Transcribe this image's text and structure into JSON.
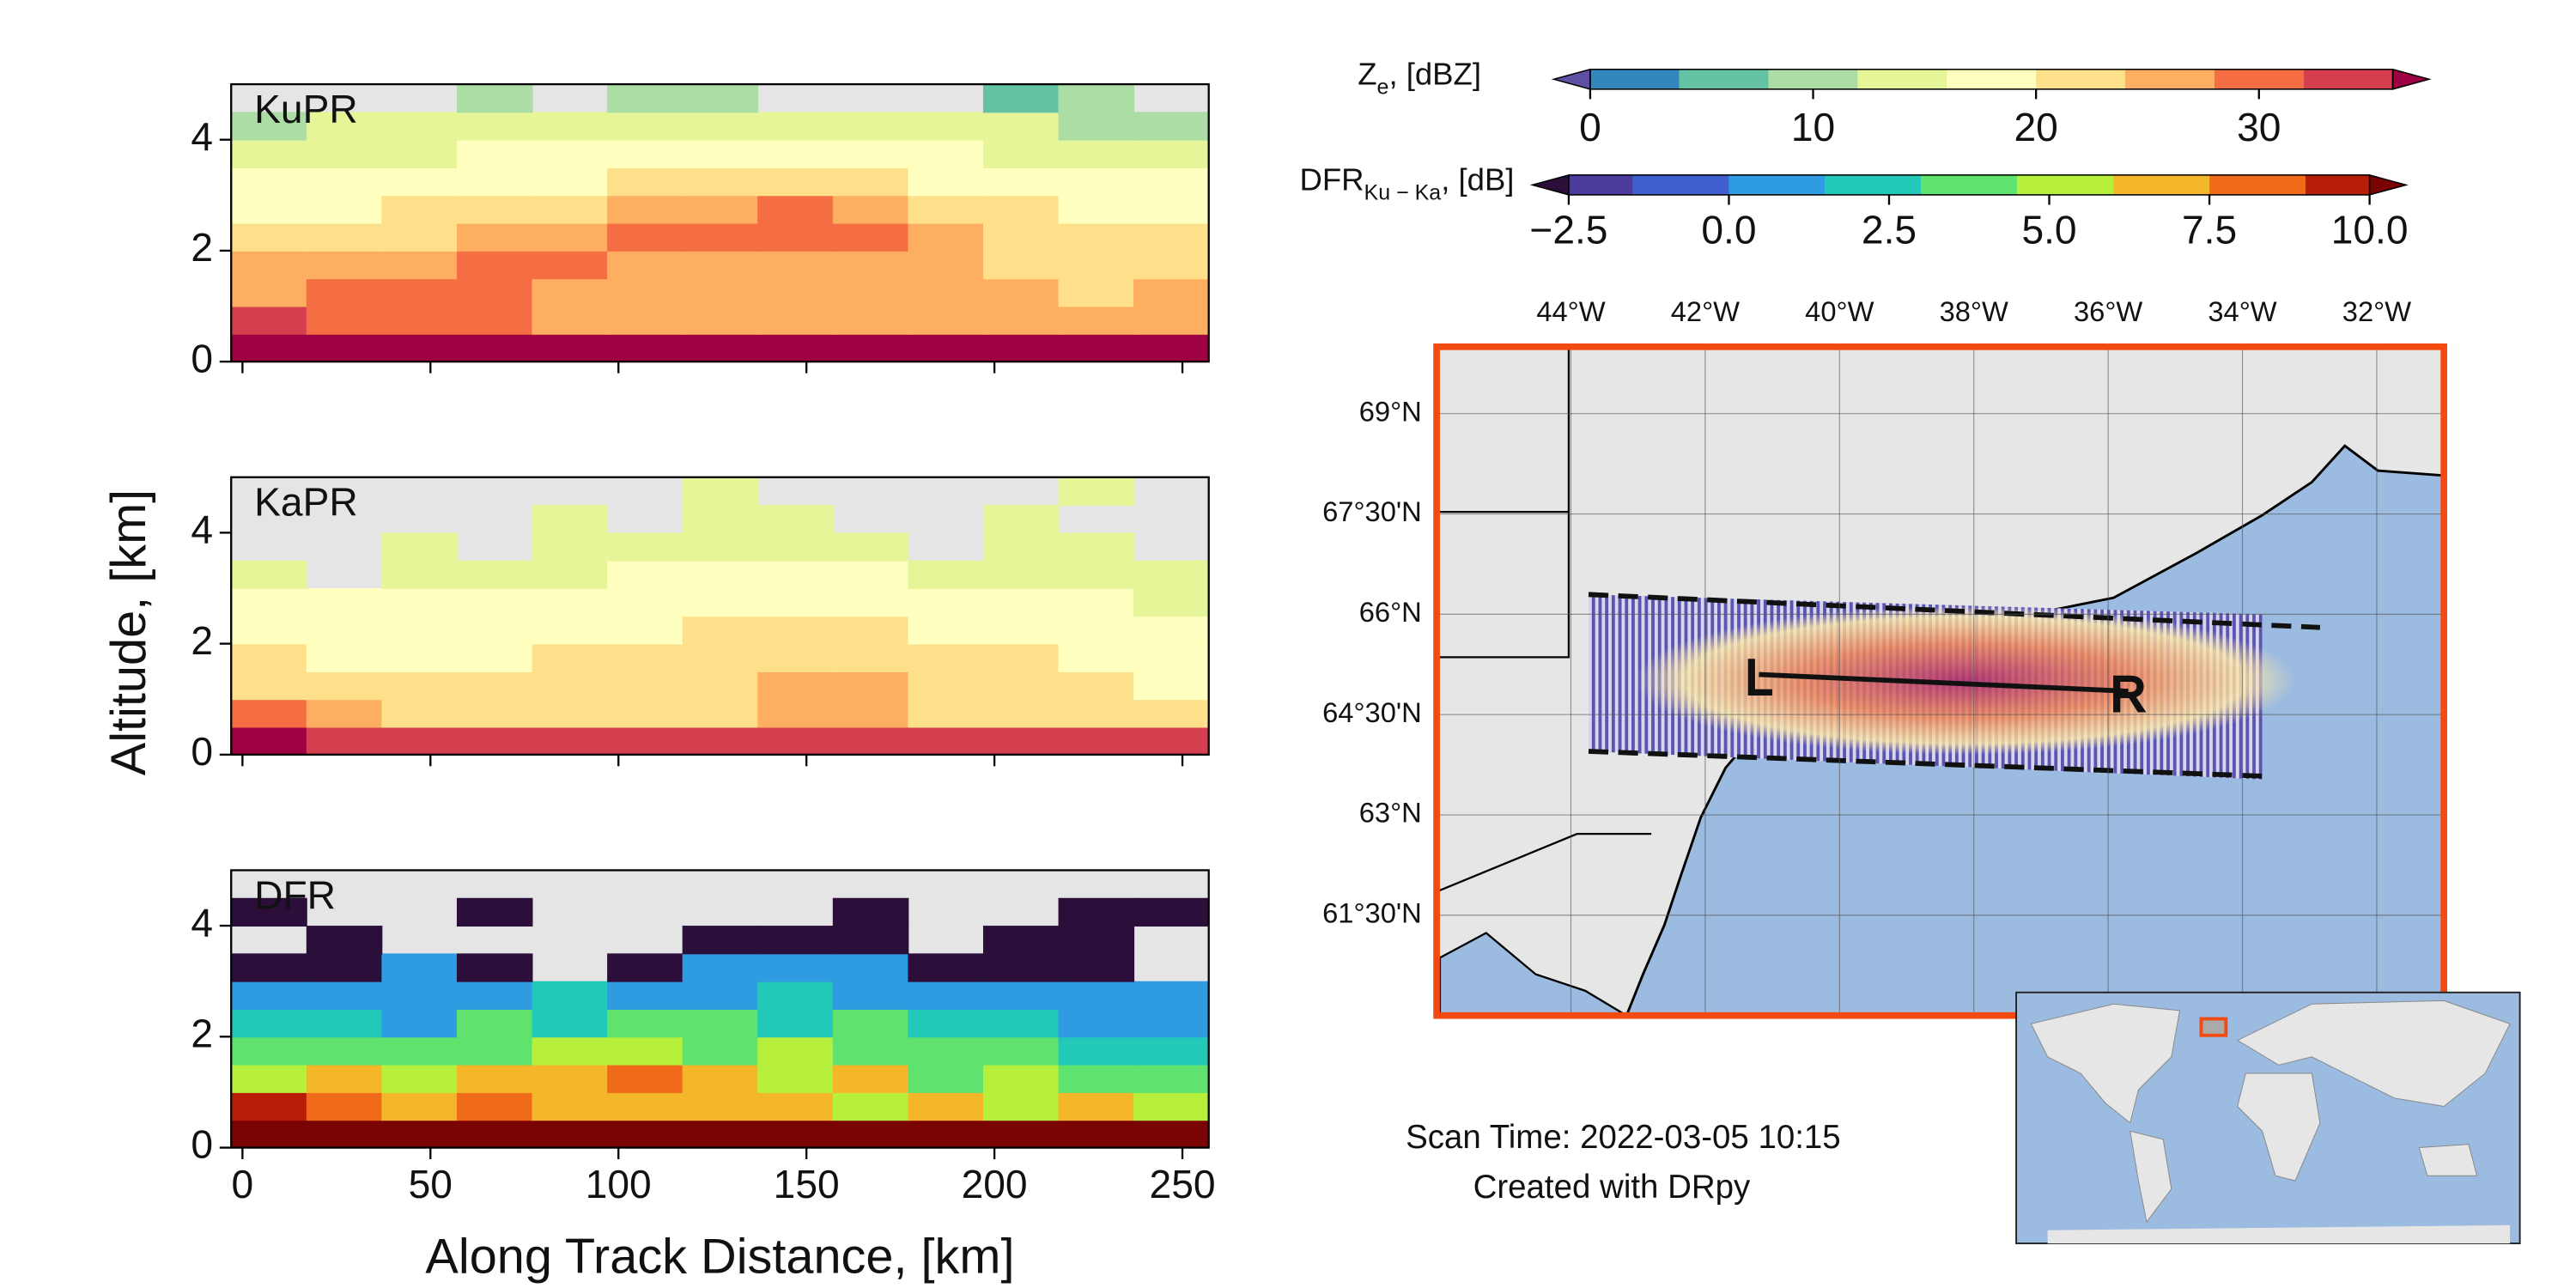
{
  "chart_data": [
    {
      "type": "heatmap",
      "title": "KuPR",
      "xlim": [
        -3,
        257
      ],
      "ylim": [
        0,
        5
      ],
      "yticks": [
        0,
        2,
        4
      ],
      "x_edges": [
        -3,
        17,
        37,
        57,
        77,
        97,
        117,
        137,
        157,
        177,
        197,
        217,
        237,
        257
      ],
      "y_edges": [
        0,
        0.5,
        1,
        1.5,
        2,
        2.5,
        3,
        3.5,
        4,
        4.5,
        5
      ],
      "z": [
        [
          37,
          37,
          37,
          37,
          37,
          37,
          37,
          37,
          37,
          37,
          37,
          37,
          37
        ],
        [
          33,
          30,
          28,
          28,
          27,
          27,
          27,
          26,
          27,
          27,
          26,
          25,
          26
        ],
        [
          27,
          28,
          28,
          29,
          27,
          26,
          26,
          25,
          26,
          25,
          24,
          23,
          24
        ],
        [
          24,
          24,
          26,
          28,
          29,
          27,
          26,
          27,
          27,
          25,
          23,
          22,
          22
        ],
        [
          21,
          22,
          23,
          24,
          26,
          29,
          28,
          28,
          28,
          24,
          22,
          21,
          20
        ],
        [
          19,
          19,
          20,
          21,
          22,
          24,
          26,
          28,
          27,
          22,
          20,
          19,
          18
        ],
        [
          17,
          17,
          18,
          18,
          19,
          20,
          21,
          22,
          21,
          19,
          18,
          17,
          16
        ],
        [
          14,
          15,
          15,
          16,
          16,
          17,
          18,
          18,
          17,
          16,
          15,
          14,
          14
        ],
        [
          11,
          12,
          12,
          13,
          13,
          13,
          14,
          14,
          13,
          12,
          12,
          10,
          11
        ],
        [
          null,
          null,
          null,
          10,
          null,
          8,
          9,
          null,
          null,
          null,
          7,
          8,
          null
        ]
      ]
    },
    {
      "type": "heatmap",
      "title": "KaPR",
      "ylabel": "Altitude, [km]",
      "xlim": [
        -3,
        257
      ],
      "ylim": [
        0,
        5
      ],
      "yticks": [
        0,
        2,
        4
      ],
      "x_edges": [
        -3,
        17,
        37,
        57,
        77,
        97,
        117,
        137,
        157,
        177,
        197,
        217,
        237,
        257
      ],
      "y_edges": [
        0,
        0.5,
        1,
        1.5,
        2,
        2.5,
        3,
        3.5,
        4,
        4.5,
        5
      ],
      "z": [
        [
          37,
          34,
          33,
          33,
          33,
          33,
          33,
          33,
          33,
          33,
          33,
          33,
          33
        ],
        [
          30,
          26,
          22,
          21,
          21,
          22,
          23,
          24,
          24,
          23,
          22,
          21,
          20
        ],
        [
          22,
          21,
          20,
          20,
          21,
          22,
          23,
          24,
          24,
          22,
          21,
          20,
          19
        ],
        [
          20,
          19,
          19,
          19,
          20,
          21,
          22,
          23,
          23,
          21,
          20,
          19,
          18
        ],
        [
          18,
          17,
          17,
          18,
          18,
          19,
          20,
          21,
          20,
          19,
          18,
          17,
          17
        ],
        [
          16,
          16,
          16,
          16,
          17,
          17,
          18,
          18,
          18,
          17,
          16,
          16,
          15
        ],
        [
          14,
          null,
          15,
          15,
          15,
          16,
          16,
          16,
          16,
          15,
          15,
          14,
          14
        ],
        [
          null,
          null,
          13,
          null,
          14,
          14,
          15,
          14,
          15,
          null,
          14,
          13,
          null
        ],
        [
          null,
          null,
          null,
          null,
          13,
          null,
          13,
          13,
          null,
          null,
          13,
          null,
          null
        ],
        [
          null,
          null,
          null,
          null,
          null,
          null,
          12,
          null,
          null,
          null,
          null,
          12,
          null
        ]
      ]
    },
    {
      "type": "heatmap",
      "title": "DFR",
      "xlabel": "Along Track Distance, [km]",
      "xlim": [
        -3,
        257
      ],
      "ylim": [
        0,
        5
      ],
      "xticks": [
        0,
        50,
        100,
        150,
        200,
        250
      ],
      "yticks": [
        0,
        2,
        4
      ],
      "x_edges": [
        -3,
        17,
        37,
        57,
        77,
        97,
        117,
        137,
        157,
        177,
        197,
        217,
        237,
        257
      ],
      "y_edges": [
        0,
        0.5,
        1,
        1.5,
        2,
        2.5,
        3,
        3.5,
        4,
        4.5,
        5
      ],
      "z": [
        [
          11,
          11,
          11,
          11,
          11,
          11,
          11,
          11,
          11,
          11,
          11,
          11,
          11
        ],
        [
          9,
          8,
          7,
          8,
          7,
          6,
          7,
          6,
          5,
          6,
          5,
          6,
          5
        ],
        [
          5,
          6,
          5,
          7,
          6,
          8,
          6,
          5,
          6,
          4,
          5,
          4,
          3
        ],
        [
          3,
          4,
          3,
          4,
          5,
          5,
          4,
          5,
          4,
          3,
          3,
          2,
          2
        ],
        [
          2,
          2,
          1,
          3,
          2,
          3,
          3,
          2,
          3,
          2,
          2,
          1,
          1
        ],
        [
          1,
          0,
          0,
          1,
          2,
          1,
          1,
          2,
          1,
          1,
          0,
          1,
          0
        ],
        [
          -3,
          -3,
          0,
          -3,
          null,
          -3,
          0,
          1,
          0,
          -3,
          -3,
          -3,
          null
        ],
        [
          null,
          -3,
          null,
          null,
          null,
          null,
          -3,
          -3,
          -3,
          null,
          -3,
          -3,
          null
        ],
        [
          -3,
          null,
          null,
          -3,
          null,
          null,
          null,
          null,
          -3,
          null,
          null,
          -3,
          -3
        ],
        [
          null,
          null,
          null,
          null,
          null,
          null,
          null,
          null,
          null,
          null,
          null,
          null,
          null
        ]
      ]
    },
    {
      "type": "colorbar",
      "label": [
        "Z",
        "e",
        ", [dBZ]"
      ],
      "ticks": [
        0,
        10,
        20,
        30
      ],
      "levels": [
        0,
        4,
        8,
        12,
        16,
        20,
        24,
        28,
        32,
        36
      ],
      "colors": [
        "#3288bd",
        "#66c2a5",
        "#abdda4",
        "#e6f598",
        "#ffffbf",
        "#fee08b",
        "#fdae61",
        "#f46d43",
        "#d53e4f"
      ],
      "under": "#5e4fa2",
      "over": "#9e0142"
    },
    {
      "type": "colorbar",
      "label": [
        "DFR",
        "Ku − Ka",
        ", [dB]"
      ],
      "ticks": [
        {
          "value": -2.5,
          "label": "−2.5"
        },
        {
          "value": 0,
          "label": "0.0"
        },
        2.5,
        {
          "value": 5,
          "label": "5.0"
        },
        7.5,
        {
          "value": 10,
          "label": "10.0"
        }
      ],
      "levels": [
        -2.5,
        -1.5,
        0,
        1.5,
        3,
        4.5,
        6,
        7.5,
        9,
        10
      ],
      "colors": [
        "#4a3b9c",
        "#3f5fcf",
        "#2f9be0",
        "#22c9b8",
        "#5fe26e",
        "#b7f03c",
        "#f5b72a",
        "#f06a1a",
        "#b81d08"
      ],
      "under": "#2b0f3a",
      "over": "#7a0403"
    },
    {
      "type": "map",
      "xlim": [
        -46,
        -31
      ],
      "ylim": [
        60,
        70
      ],
      "xticks": [
        {
          "value": -44,
          "label": "44°W"
        },
        {
          "value": -42,
          "label": "42°W"
        },
        {
          "value": -40,
          "label": "40°W"
        },
        {
          "value": -38,
          "label": "38°W"
        },
        {
          "value": -36,
          "label": "36°W"
        },
        {
          "value": -34,
          "label": "34°W"
        },
        {
          "value": -32,
          "label": "32°W"
        }
      ],
      "yticks": [
        {
          "value": 69,
          "label": "69°N"
        },
        {
          "value": 67.5,
          "label": "67°30'N"
        },
        {
          "value": 66,
          "label": "66°N"
        },
        {
          "value": 64.5,
          "label": "64°30'N"
        },
        {
          "value": 63,
          "label": "63°N"
        },
        {
          "value": 61.5,
          "label": "61°30'N"
        }
      ],
      "track": {
        "x": [
          -41.2,
          -35.7
        ],
        "y": [
          65.1,
          64.85
        ],
        "labels": [
          "L",
          "R"
        ]
      },
      "annotations": [
        "Scan Time: 2022-03-05 10:15",
        "Created with DRpy"
      ]
    }
  ]
}
